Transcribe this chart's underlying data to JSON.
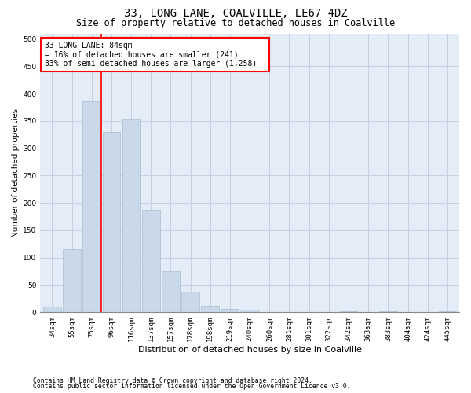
{
  "title1": "33, LONG LANE, COALVILLE, LE67 4DZ",
  "title2": "Size of property relative to detached houses in Coalville",
  "xlabel": "Distribution of detached houses by size in Coalville",
  "ylabel": "Number of detached properties",
  "categories": [
    "34sqm",
    "55sqm",
    "75sqm",
    "96sqm",
    "116sqm",
    "137sqm",
    "157sqm",
    "178sqm",
    "198sqm",
    "219sqm",
    "240sqm",
    "260sqm",
    "281sqm",
    "301sqm",
    "322sqm",
    "342sqm",
    "363sqm",
    "383sqm",
    "404sqm",
    "424sqm",
    "445sqm"
  ],
  "values": [
    10,
    115,
    385,
    330,
    353,
    188,
    75,
    38,
    12,
    6,
    5,
    1,
    1,
    1,
    0,
    2,
    0,
    2,
    0,
    0,
    2
  ],
  "bar_color": "#c9d9ea",
  "bar_edge_color": "#a8bfd0",
  "grid_color": "#c5cfe0",
  "background_color": "#e4ecf7",
  "red_line_x": 2.5,
  "annotation_text": "33 LONG LANE: 84sqm\n← 16% of detached houses are smaller (241)\n83% of semi-detached houses are larger (1,258) →",
  "annotation_box_color": "white",
  "annotation_border_color": "red",
  "ylim": [
    0,
    510
  ],
  "yticks": [
    0,
    50,
    100,
    150,
    200,
    250,
    300,
    350,
    400,
    450,
    500
  ],
  "footer1": "Contains HM Land Registry data © Crown copyright and database right 2024.",
  "footer2": "Contains public sector information licensed under the Open Government Licence v3.0.",
  "title1_fontsize": 10,
  "title2_fontsize": 8.5,
  "xlabel_fontsize": 8,
  "ylabel_fontsize": 7.5,
  "tick_fontsize": 6.5,
  "annotation_fontsize": 7,
  "footer_fontsize": 5.8
}
